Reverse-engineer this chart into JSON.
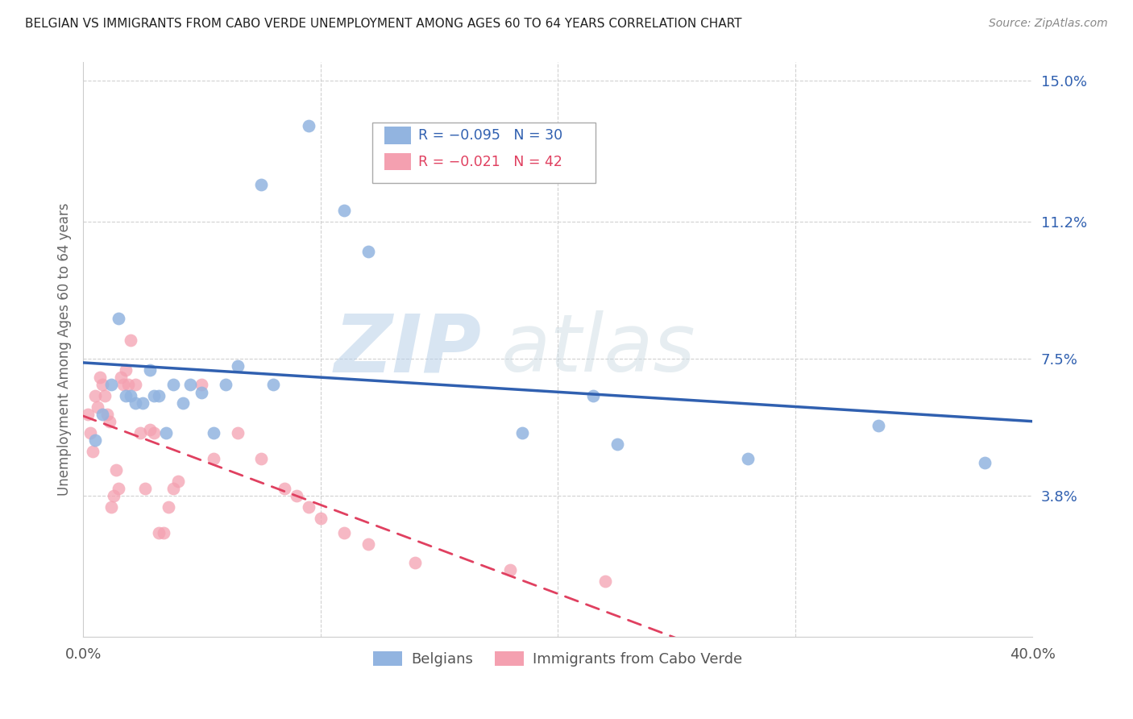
{
  "title": "BELGIAN VS IMMIGRANTS FROM CABO VERDE UNEMPLOYMENT AMONG AGES 60 TO 64 YEARS CORRELATION CHART",
  "source": "Source: ZipAtlas.com",
  "ylabel": "Unemployment Among Ages 60 to 64 years",
  "xlim": [
    0.0,
    0.4
  ],
  "ylim": [
    0.0,
    0.155
  ],
  "ytick_positions": [
    0.038,
    0.075,
    0.112,
    0.15
  ],
  "ytick_labels": [
    "3.8%",
    "7.5%",
    "11.2%",
    "15.0%"
  ],
  "legend_label_blue": "Belgians",
  "legend_label_pink": "Immigrants from Cabo Verde",
  "legend_R_blue": "-0.095",
  "legend_N_blue": "30",
  "legend_R_pink": "-0.021",
  "legend_N_pink": "42",
  "blue_color": "#92b4e0",
  "pink_color": "#f4a0b0",
  "blue_line_color": "#3060b0",
  "pink_line_color": "#e04060",
  "watermark_zip": "ZIP",
  "watermark_atlas": "atlas",
  "background_color": "#ffffff",
  "grid_color": "#cccccc",
  "blue_x": [
    0.005,
    0.008,
    0.012,
    0.015,
    0.018,
    0.02,
    0.022,
    0.025,
    0.028,
    0.03,
    0.032,
    0.035,
    0.038,
    0.042,
    0.045,
    0.05,
    0.055,
    0.06,
    0.065,
    0.075,
    0.08,
    0.095,
    0.11,
    0.12,
    0.185,
    0.215,
    0.225,
    0.28,
    0.335,
    0.38
  ],
  "blue_y": [
    0.053,
    0.06,
    0.068,
    0.086,
    0.065,
    0.065,
    0.063,
    0.063,
    0.072,
    0.065,
    0.065,
    0.055,
    0.068,
    0.063,
    0.068,
    0.066,
    0.055,
    0.068,
    0.073,
    0.122,
    0.068,
    0.138,
    0.115,
    0.104,
    0.055,
    0.065,
    0.052,
    0.048,
    0.057,
    0.047
  ],
  "pink_x": [
    0.002,
    0.003,
    0.004,
    0.005,
    0.006,
    0.007,
    0.008,
    0.009,
    0.01,
    0.011,
    0.012,
    0.013,
    0.014,
    0.015,
    0.016,
    0.017,
    0.018,
    0.019,
    0.02,
    0.022,
    0.024,
    0.026,
    0.028,
    0.03,
    0.032,
    0.034,
    0.036,
    0.038,
    0.04,
    0.05,
    0.055,
    0.065,
    0.075,
    0.085,
    0.09,
    0.095,
    0.1,
    0.11,
    0.12,
    0.14,
    0.18,
    0.22
  ],
  "pink_y": [
    0.06,
    0.055,
    0.05,
    0.065,
    0.062,
    0.07,
    0.068,
    0.065,
    0.06,
    0.058,
    0.035,
    0.038,
    0.045,
    0.04,
    0.07,
    0.068,
    0.072,
    0.068,
    0.08,
    0.068,
    0.055,
    0.04,
    0.056,
    0.055,
    0.028,
    0.028,
    0.035,
    0.04,
    0.042,
    0.068,
    0.048,
    0.055,
    0.048,
    0.04,
    0.038,
    0.035,
    0.032,
    0.028,
    0.025,
    0.02,
    0.018,
    0.015
  ]
}
